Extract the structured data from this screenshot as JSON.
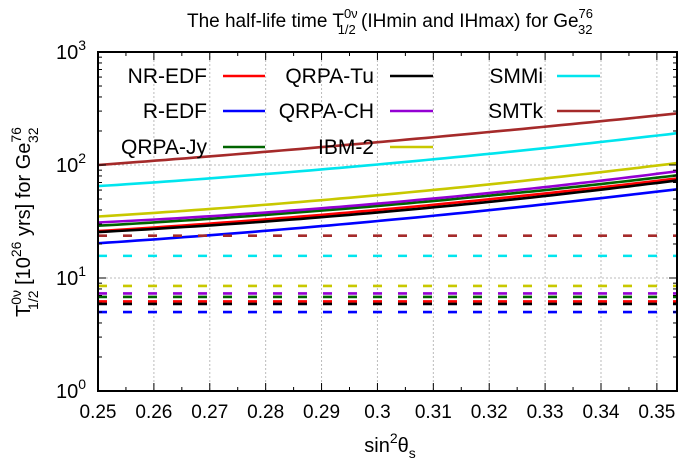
{
  "chart_data": {
    "type": "line",
    "title": {
      "prefix": "The half-life time T",
      "sup": "0ν",
      "sub": "1/2",
      "middle": " (IHmin and IHmax) for Ge",
      "sup2": "76",
      "sub2": "32"
    },
    "xlabel": {
      "prefix": "sin",
      "sup": "2",
      "main": "θ",
      "sub": "s"
    },
    "ylabel": {
      "prefix": "T",
      "sup": "0ν",
      "sub": "1/2",
      "middle": " [10",
      "sup2": "26",
      "suffix": " yrs] for Ge",
      "sup3": "76",
      "sub3": "32"
    },
    "xlim": [
      0.25,
      0.3536
    ],
    "ylim": [
      1,
      1000
    ],
    "yscale": "log",
    "grid": true,
    "legend_position": "top-left, 3 columns",
    "x_ticks": [
      "0.25",
      "0.26",
      "0.27",
      "0.28",
      "0.29",
      "0.3",
      "0.31",
      "0.32",
      "0.33",
      "0.34",
      "0.35"
    ],
    "y_ticks": [
      {
        "base": "10",
        "exp": "0"
      },
      {
        "base": "10",
        "exp": "1"
      },
      {
        "base": "10",
        "exp": "2"
      },
      {
        "base": "10",
        "exp": "3"
      }
    ],
    "x": [
      0.25,
      0.3,
      0.3536
    ],
    "series": [
      {
        "name": "NR-EDF",
        "color": "#ff0000",
        "ihmin": [
          26,
          40,
          76
        ],
        "ihmax": 6.2
      },
      {
        "name": "R-EDF",
        "color": "#0000ff",
        "ihmin": [
          20.3,
          31.9,
          61
        ],
        "ihmax": 5.0
      },
      {
        "name": "QRPA-Jy",
        "color": "#006400",
        "ihmin": [
          29,
          43.4,
          81
        ],
        "ihmax": 6.8
      },
      {
        "name": "QRPA-Tu",
        "color": "#000000",
        "ihmin": [
          25.5,
          38,
          73
        ],
        "ihmax": 5.9
      },
      {
        "name": "QRPA-CH",
        "color": "#9400d3",
        "ihmin": [
          31,
          45.5,
          88
        ],
        "ihmax": 7.3
      },
      {
        "name": "IBM-2",
        "color": "#c8c800",
        "ihmin": [
          35,
          54,
          104
        ],
        "ihmax": 8.5
      },
      {
        "name": "SMMi",
        "color": "#00e5ee",
        "ihmin": [
          65,
          101,
          191
        ],
        "ihmax": 15.7
      },
      {
        "name": "SMTk",
        "color": "#a52a2a",
        "ihmin": [
          100,
          159,
          286
        ],
        "ihmax": 23.7
      }
    ]
  }
}
